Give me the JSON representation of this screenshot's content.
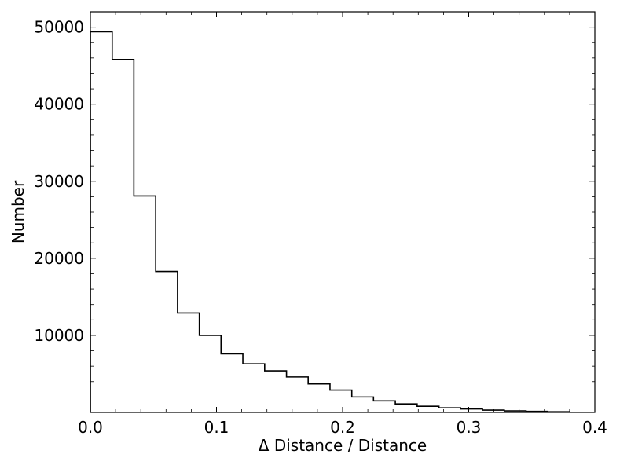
{
  "chart_data": {
    "type": "histogram",
    "title": "",
    "xlabel": "Δ Distance / Distance",
    "ylabel": "Number",
    "xlim": [
      0.0,
      0.4
    ],
    "ylim": [
      0,
      52000
    ],
    "x_ticks": [
      0.0,
      0.1,
      0.2,
      0.3,
      0.4
    ],
    "x_tick_labels": [
      "0.0",
      "0.1",
      "0.2",
      "0.3",
      "0.4"
    ],
    "y_ticks": [
      10000,
      20000,
      30000,
      40000,
      50000
    ],
    "y_tick_labels": [
      "10000",
      "20000",
      "30000",
      "40000",
      "50000"
    ],
    "grid": false,
    "style": "step-outline",
    "bin_edges": [
      0.0,
      0.0173,
      0.0345,
      0.0518,
      0.0691,
      0.0864,
      0.1036,
      0.1209,
      0.1382,
      0.1555,
      0.1727,
      0.19,
      0.2073,
      0.2245,
      0.2418,
      0.2591,
      0.2764,
      0.2936,
      0.3109,
      0.3282,
      0.3455,
      0.3627,
      0.38
    ],
    "values": [
      49400,
      45800,
      28100,
      18300,
      12900,
      10000,
      7600,
      6300,
      5400,
      4600,
      3700,
      2900,
      2000,
      1500,
      1100,
      800,
      600,
      450,
      300,
      200,
      130,
      80
    ]
  }
}
